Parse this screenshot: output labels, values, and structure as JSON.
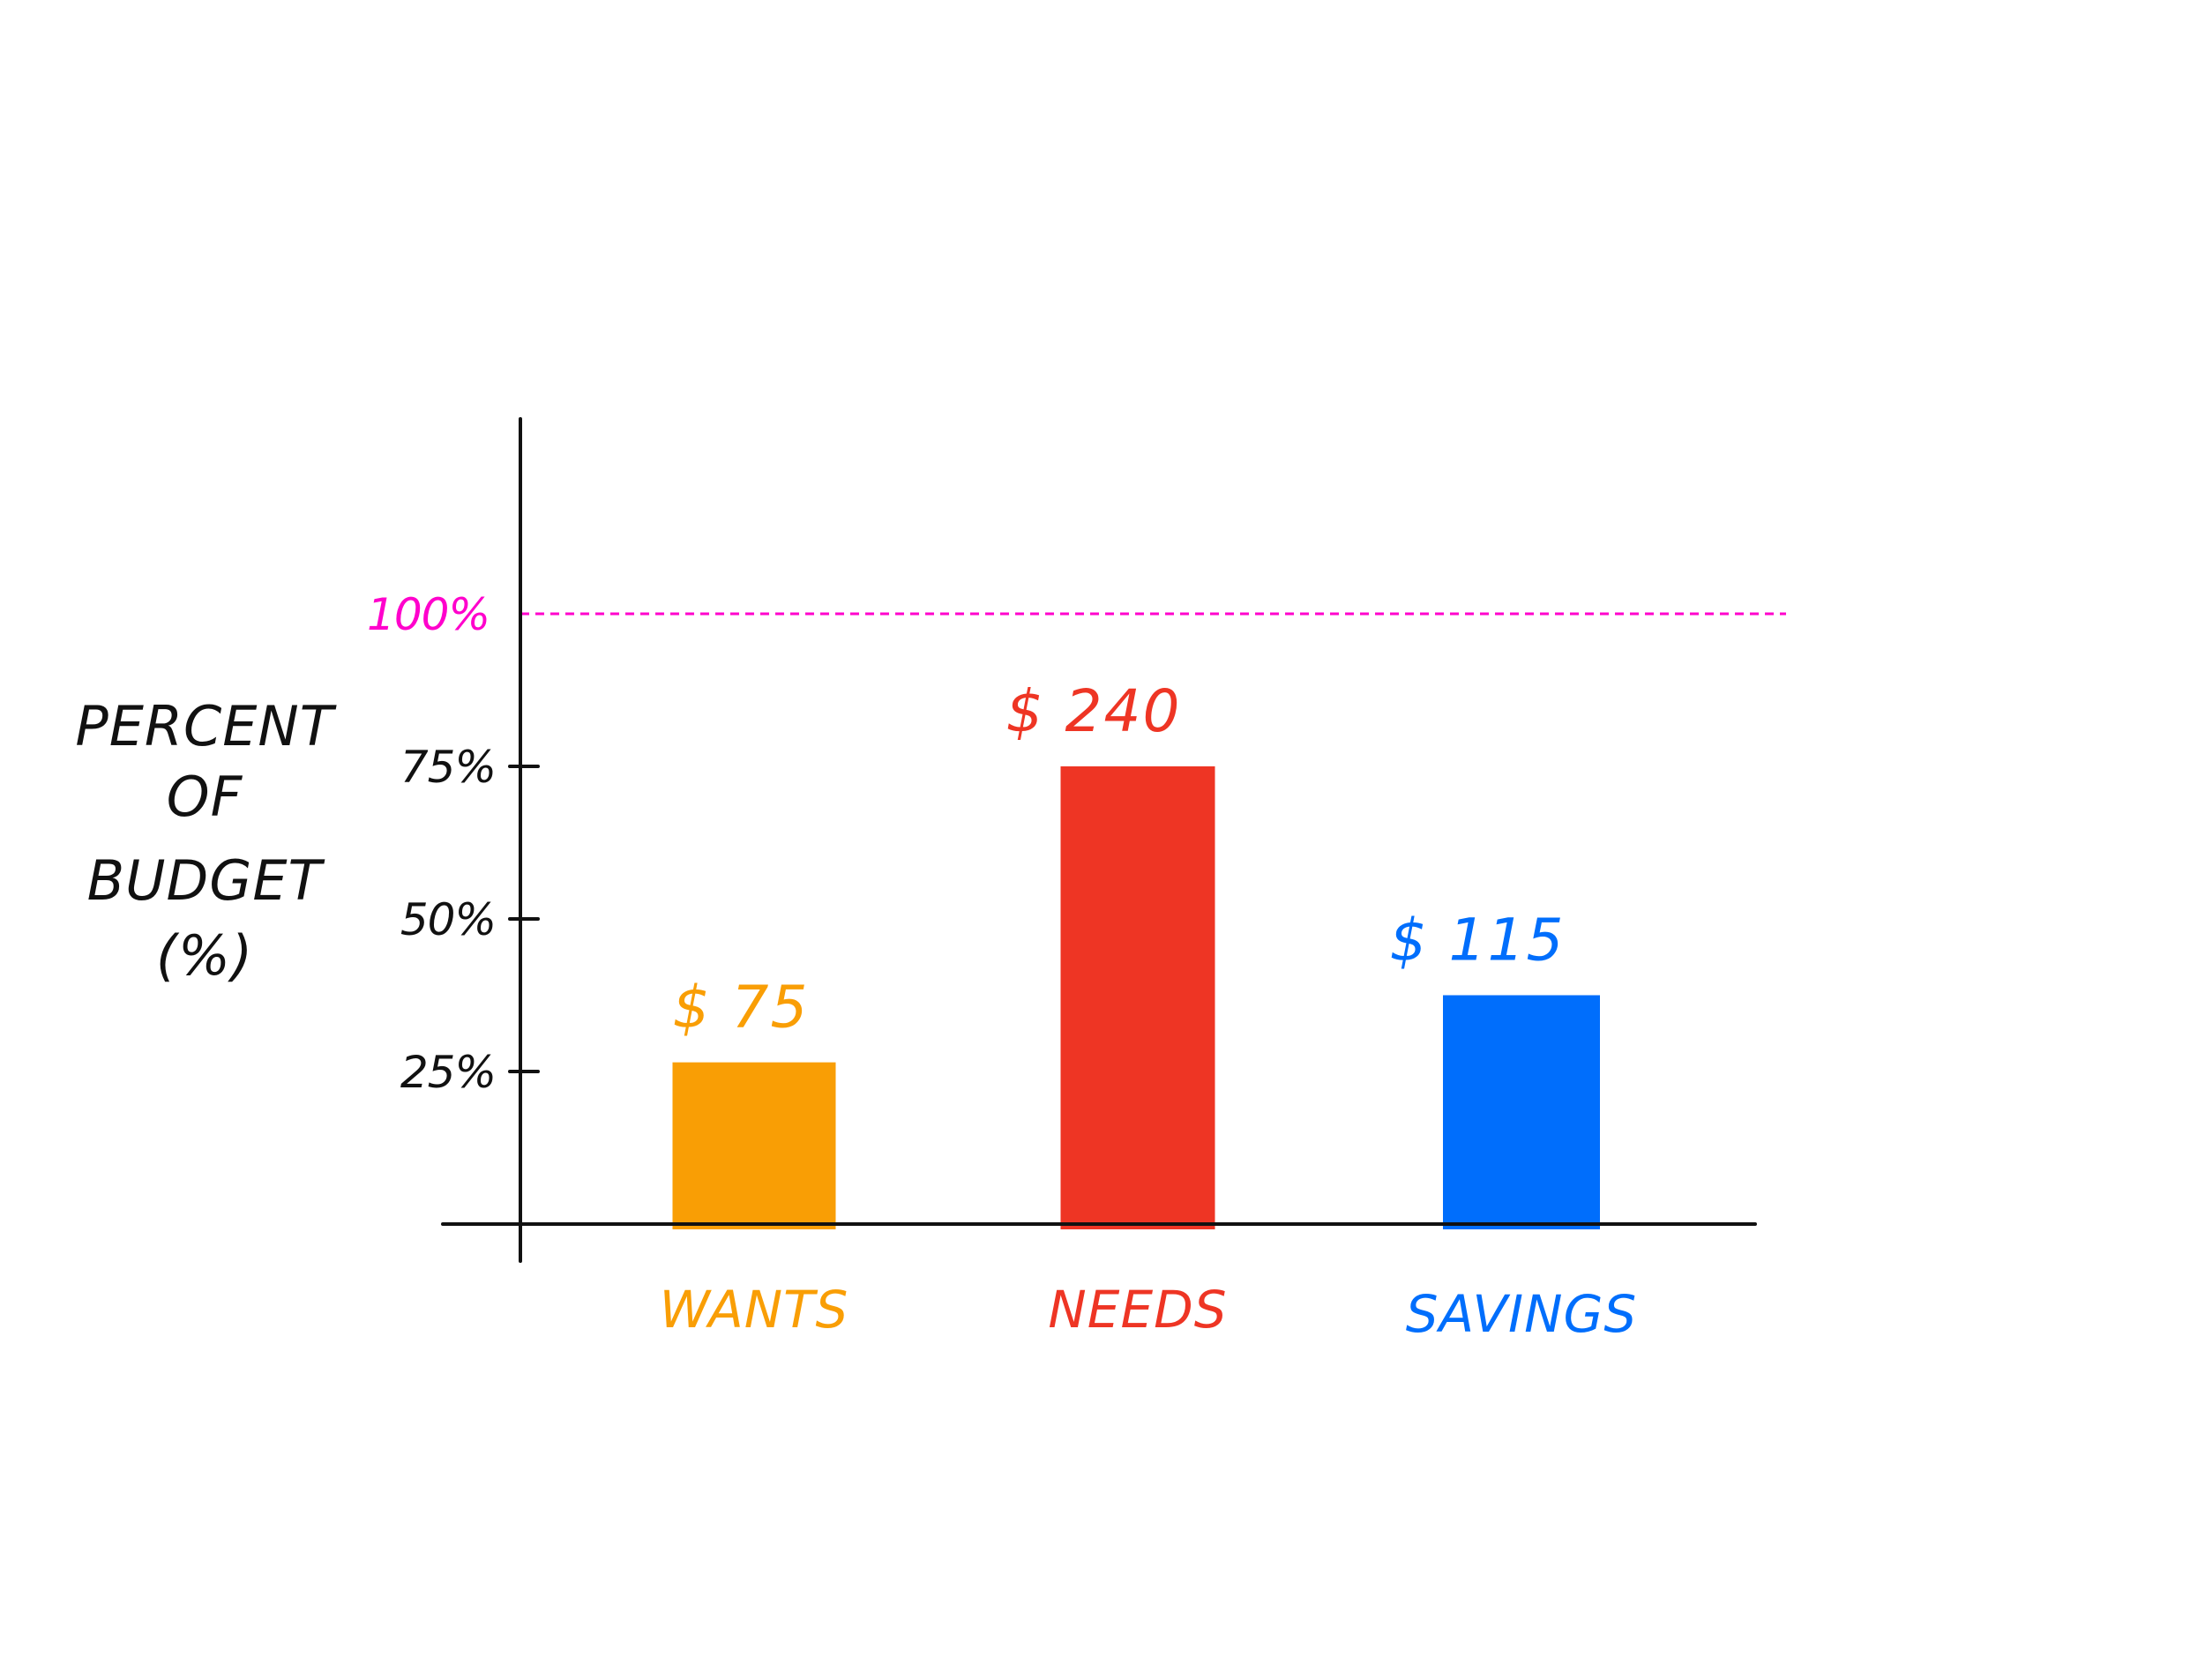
{
  "chart_data": {
    "type": "bar",
    "ylabel_lines": [
      "PERCENT",
      "OF",
      "BUDGET",
      "(%)"
    ],
    "ylim": [
      0,
      125
    ],
    "y_ticks": [
      {
        "value": 25,
        "label": "25%"
      },
      {
        "value": 50,
        "label": "50%"
      },
      {
        "value": 75,
        "label": "75%"
      }
    ],
    "reference_line": {
      "value": 100,
      "label": "100%",
      "color": "#ff00cc",
      "style": "dashed"
    },
    "categories": [
      "WANTS",
      "NEEDS",
      "SAVINGS"
    ],
    "values": [
      26.5,
      75,
      37.5
    ],
    "value_labels": [
      "$ 75",
      "$ 240",
      "$ 115"
    ],
    "colors": [
      "#f99e05",
      "#ee3524",
      "#006efc"
    ],
    "grid": false,
    "legend": "none"
  }
}
